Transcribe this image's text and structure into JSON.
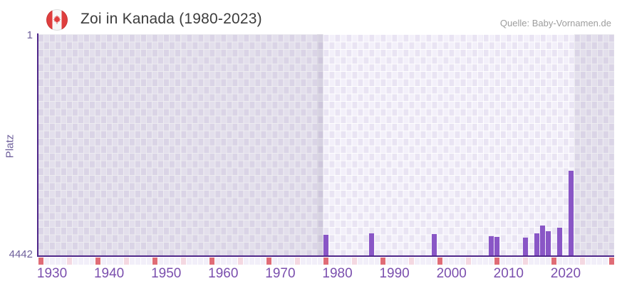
{
  "header": {
    "title": "Zoi in Kanada (1980-2023)",
    "source": "Quelle: Baby-Vornamen.de",
    "flag_icon": "canada-flag-icon"
  },
  "chart_data": {
    "type": "bar",
    "title": "Zoi in Kanada (1980-2023)",
    "ylabel": "Platz",
    "xlabel": "",
    "y_axis": {
      "top_tick": "1",
      "bottom_tick": "4442",
      "min": 1,
      "max": 4442,
      "inverted": true
    },
    "x_axis": {
      "first_year": 1928,
      "last_year": 2028,
      "tick_years": [
        1930,
        1940,
        1950,
        1960,
        1970,
        1980,
        1990,
        2000,
        2010,
        2020
      ]
    },
    "highlight_year_range": [
      1978,
      2021
    ],
    "hover_column_year": 1977,
    "grid": true,
    "legend": "none",
    "series": [
      {
        "name": "Platz",
        "points": [
          {
            "year": 1978,
            "value": 4000
          },
          {
            "year": 1986,
            "value": 3980
          },
          {
            "year": 1997,
            "value": 3990
          },
          {
            "year": 2007,
            "value": 4025
          },
          {
            "year": 2008,
            "value": 4040
          },
          {
            "year": 2013,
            "value": 4060
          },
          {
            "year": 2015,
            "value": 3975
          },
          {
            "year": 2016,
            "value": 3820
          },
          {
            "year": 2017,
            "value": 3930
          },
          {
            "year": 2019,
            "value": 3860
          },
          {
            "year": 2021,
            "value": 2725
          }
        ]
      }
    ],
    "bottom_marker_row": {
      "strong_years": [
        1928,
        1938,
        1948,
        1958,
        1968,
        1978,
        1988,
        1998,
        2008,
        2018,
        2028
      ],
      "faint_years": [
        1933,
        1943,
        1953,
        1963,
        1973,
        1983,
        1993,
        2003,
        2013,
        2023
      ]
    }
  },
  "colors": {
    "bar": "#8956c6",
    "axis_line": "#4f278a",
    "x_tick_label": "#7b4fae",
    "y_tick_label": "#6e5f9b",
    "marker_strong": "#e06c76",
    "marker_faint": "#f4d8e1",
    "flag_red": "#df3e3e",
    "title_text": "#3c3c3c",
    "source_text": "#9d9d9d"
  }
}
